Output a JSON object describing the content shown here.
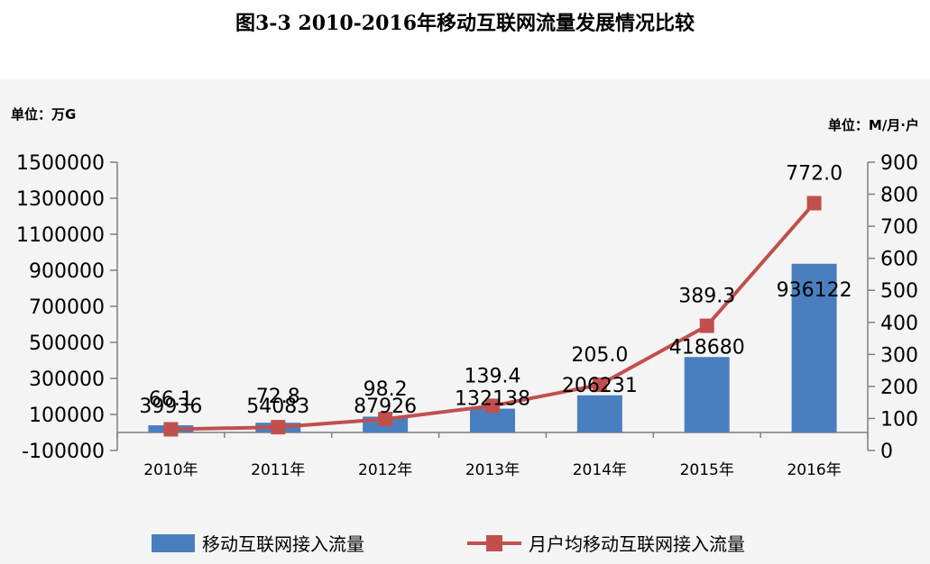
{
  "title": "图3-3 2010-2016年移动互联网流量发展情况比较",
  "left_unit": "单位：万G",
  "right_unit": "单位：M/月·户",
  "colors": {
    "bar": "#4a7fbf",
    "line": "#c0504d",
    "panel": "#f4f4f4"
  },
  "legend": {
    "bar_label": "移动互联网接入流量",
    "line_label": "月户均移动互联网接入流量"
  },
  "chart_data": {
    "type": "bar",
    "categories": [
      "2010年",
      "2011年",
      "2012年",
      "2013年",
      "2014年",
      "2015年",
      "2016年"
    ],
    "series": [
      {
        "name": "移动互联网接入流量",
        "type": "bar",
        "axis": "left",
        "values": [
          39936,
          54083,
          87926,
          132138,
          206231,
          418680,
          936122
        ],
        "labels": [
          "39936",
          "54083",
          "87926",
          "132138",
          "206231",
          "418680",
          "936122"
        ]
      },
      {
        "name": "月户均移动互联网接入流量",
        "type": "line",
        "axis": "right",
        "values": [
          66.1,
          72.8,
          98.2,
          139.4,
          205.0,
          389.3,
          772.0
        ],
        "labels": [
          "66.1",
          "72.8",
          "98.2",
          "139.4",
          "205.0",
          "389.3",
          "772.0"
        ]
      }
    ],
    "y_left": {
      "min": -100000,
      "max": 1500000,
      "step": 200000,
      "ticks": [
        "-100000",
        "100000",
        "300000",
        "500000",
        "700000",
        "900000",
        "1100000",
        "1300000",
        "1500000"
      ]
    },
    "y_right": {
      "min": 0,
      "max": 900,
      "step": 100,
      "ticks": [
        "0",
        "100",
        "200",
        "300",
        "400",
        "500",
        "600",
        "700",
        "800",
        "900"
      ]
    },
    "grid": false,
    "legend_position": "bottom"
  }
}
